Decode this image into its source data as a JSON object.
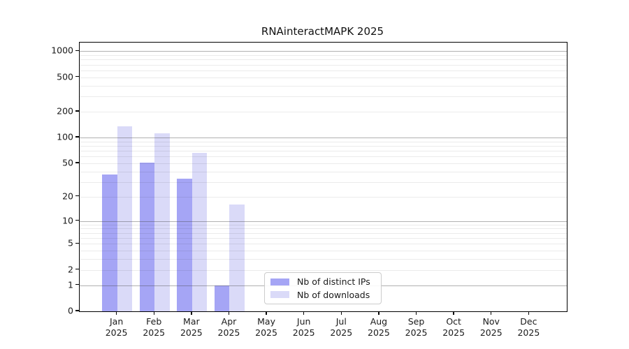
{
  "title": "RNAinteractMAPK 2025",
  "chart_data": {
    "type": "bar",
    "title": "RNAinteractMAPK 2025",
    "categories": [
      "Jan",
      "Feb",
      "Mar",
      "Apr",
      "May",
      "Jun",
      "Jul",
      "Aug",
      "Sep",
      "Oct",
      "Nov",
      "Dec"
    ],
    "year_line": "2025",
    "series": [
      {
        "name": "Nb of distinct IPs",
        "color": "#a5a5f5",
        "values": [
          37,
          51,
          33,
          1,
          0,
          0,
          0,
          0,
          0,
          0,
          0,
          0
        ]
      },
      {
        "name": "Nb of downloads",
        "color": "#dadaf8",
        "values": [
          135,
          112,
          66,
          16,
          0,
          0,
          0,
          0,
          0,
          0,
          0,
          0
        ]
      }
    ],
    "y_ticks": [
      0,
      1,
      2,
      5,
      10,
      20,
      50,
      100,
      200,
      500,
      1000
    ],
    "y_scale": "log10(1+v)",
    "ylim": [
      0,
      1258
    ],
    "xlabel": "",
    "ylabel": "",
    "grid": "horizontal; dark major gridlines at 1, 10, 100, 1000; faint minor gridlines at 2-9 per decade; drawn over bars",
    "legend": {
      "position": "inside axes, lower center-left",
      "entries": [
        "Nb of distinct IPs",
        "Nb of downloads"
      ]
    }
  },
  "colors": {
    "distinct_ips_bar": "#a5a5f5",
    "downloads_bar": "#dadaf8",
    "axis": "#000000",
    "background": "#ffffff"
  }
}
